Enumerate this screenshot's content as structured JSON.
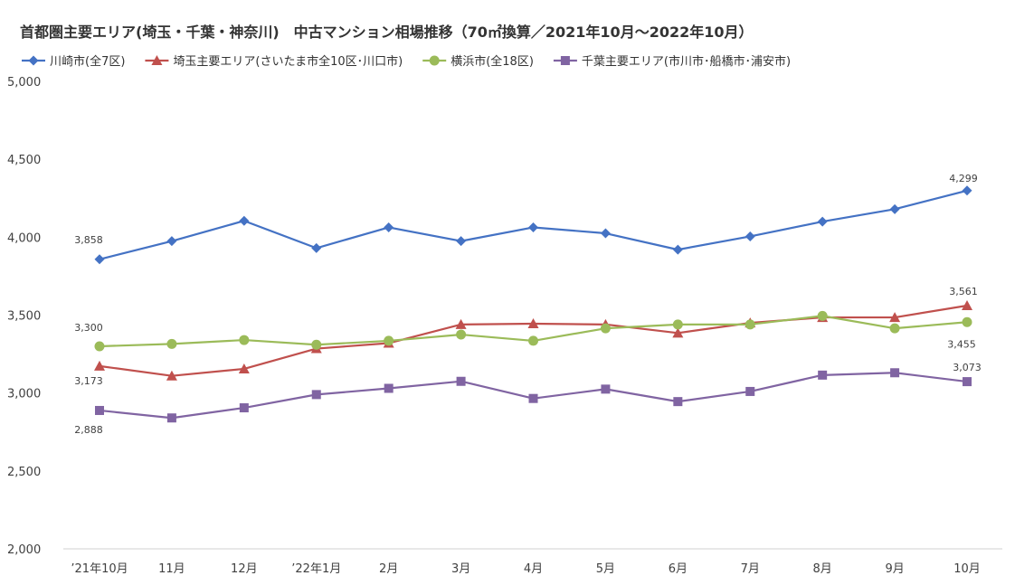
{
  "chart_data": {
    "type": "line",
    "title": "首都圏主要エリア(埼玉・千葉・神奈川)　中古マンション相場推移（70㎡換算／2021年10月～2022年10月）",
    "xlabel": "",
    "ylabel": "",
    "categories": [
      "’21年10月",
      "11月",
      "12月",
      "’22年1月",
      "2月",
      "3月",
      "4月",
      "5月",
      "6月",
      "7月",
      "8月",
      "9月",
      "10月"
    ],
    "ylim": [
      2000,
      5000
    ],
    "yticks": [
      "2,000",
      "2,500",
      "3,000",
      "3,500",
      "4,000",
      "4,500",
      "5,000"
    ],
    "grid": false,
    "legend": "top-left",
    "series": [
      {
        "name": "川崎市(全7区)",
        "color": "#4472C4",
        "marker": "diamond",
        "values": [
          3858,
          3975,
          4105,
          3930,
          4063,
          3975,
          4063,
          4025,
          3920,
          4005,
          4100,
          4180,
          4299
        ]
      },
      {
        "name": "埼玉主要エリア(さいたま市全10区･川口市)",
        "color": "#C0504D",
        "marker": "triangle",
        "values": [
          3173,
          3110,
          3155,
          3285,
          3320,
          3440,
          3445,
          3440,
          3385,
          3450,
          3485,
          3485,
          3561
        ]
      },
      {
        "name": "横浜市(全18区)",
        "color": "#9BBB59",
        "marker": "circle",
        "values": [
          3300,
          3315,
          3340,
          3310,
          3335,
          3375,
          3335,
          3415,
          3440,
          3440,
          3495,
          3415,
          3455
        ]
      },
      {
        "name": "千葉主要エリア(市川市･船橋市･浦安市)",
        "color": "#8064A2",
        "marker": "square",
        "values": [
          2888,
          2840,
          2905,
          2990,
          3030,
          3075,
          2965,
          3025,
          2945,
          3010,
          3115,
          3130,
          3073
        ]
      }
    ],
    "annotations": [
      {
        "series": 0,
        "index": 0,
        "text": "3,858"
      },
      {
        "series": 0,
        "index": 12,
        "text": "4,299"
      },
      {
        "series": 1,
        "index": 0,
        "text": "3,173"
      },
      {
        "series": 1,
        "index": 12,
        "text": "3,561"
      },
      {
        "series": 2,
        "index": 0,
        "text": "3,300"
      },
      {
        "series": 2,
        "index": 12,
        "text": "3,455"
      },
      {
        "series": 3,
        "index": 0,
        "text": "2,888"
      },
      {
        "series": 3,
        "index": 12,
        "text": "3,073"
      }
    ]
  }
}
